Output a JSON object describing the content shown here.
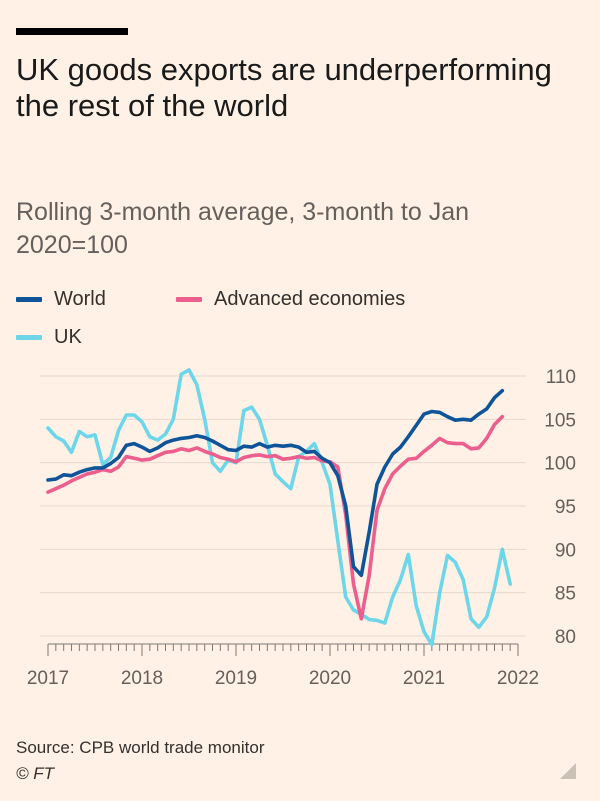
{
  "title": "UK goods exports are underperforming the rest of the world",
  "subtitle_line1": "Rolling 3-month average, 3-month to Jan",
  "subtitle_line2": "2020=100",
  "source": "Source: CPB world trade monitor",
  "credit": "© FT",
  "colors": {
    "background": "#fff1e5",
    "world": "#0f5499",
    "advanced": "#eb5e8d",
    "uk": "#6ed6e9",
    "grid": "#e6d9ce",
    "axis": "#807973",
    "tick_text": "#66605c"
  },
  "chart_data": {
    "type": "line",
    "title": "UK goods exports are underperforming the rest of the world",
    "subtitle": "Rolling 3-month average, 3-month to Jan 2020=100",
    "xlabel": "",
    "ylabel": "",
    "x_start": "2017-01",
    "x_step": "month",
    "xlim": [
      2017.0,
      2022.0
    ],
    "ylim": [
      80,
      110
    ],
    "yticks": [
      80,
      85,
      90,
      95,
      100,
      105,
      110
    ],
    "xticks": [
      {
        "label": "2017",
        "value": 2017.0
      },
      {
        "label": "2018",
        "value": 2018.0
      },
      {
        "label": "2019",
        "value": 2019.0
      },
      {
        "label": "2020",
        "value": 2020.0
      },
      {
        "label": "2021",
        "value": 2021.0
      },
      {
        "label": "2022",
        "value": 2022.0
      }
    ],
    "grid": true,
    "legend_position": "top-left",
    "series": [
      {
        "name": "World",
        "key": "world",
        "values": [
          98.0,
          98.1,
          98.6,
          98.5,
          98.9,
          99.2,
          99.4,
          99.4,
          99.9,
          100.6,
          102.0,
          102.2,
          101.8,
          101.3,
          101.7,
          102.3,
          102.6,
          102.8,
          102.9,
          103.1,
          102.9,
          102.5,
          102.0,
          101.5,
          101.4,
          101.9,
          101.8,
          102.2,
          101.8,
          102.0,
          101.9,
          102.0,
          101.8,
          101.2,
          101.3,
          100.5,
          100.0,
          98.5,
          95.0,
          88.0,
          87.0,
          92.0,
          97.5,
          99.5,
          101.0,
          101.8,
          103.0,
          104.3,
          105.6,
          105.9,
          105.8,
          105.3,
          104.9,
          105.0,
          104.9,
          105.6,
          106.2,
          107.5,
          108.3
        ]
      },
      {
        "name": "Advanced economies",
        "key": "advanced",
        "values": [
          96.6,
          97.0,
          97.4,
          97.9,
          98.3,
          98.7,
          98.9,
          99.2,
          99.0,
          99.5,
          100.7,
          100.5,
          100.3,
          100.4,
          100.8,
          101.2,
          101.3,
          101.6,
          101.4,
          101.7,
          101.3,
          101.0,
          100.6,
          100.4,
          100.1,
          100.6,
          100.8,
          100.9,
          100.7,
          100.8,
          100.4,
          100.5,
          100.7,
          100.5,
          100.6,
          100.2,
          100.1,
          99.5,
          94.0,
          86.0,
          82.0,
          87.0,
          94.5,
          97.0,
          98.7,
          99.6,
          100.4,
          100.5,
          101.3,
          102.0,
          102.8,
          102.3,
          102.2,
          102.2,
          101.6,
          101.7,
          102.8,
          104.4,
          105.3
        ]
      },
      {
        "name": "UK",
        "key": "uk",
        "values": [
          104.0,
          103.0,
          102.5,
          101.2,
          103.6,
          103.0,
          103.2,
          99.8,
          100.6,
          103.7,
          105.5,
          105.5,
          104.7,
          103.0,
          102.6,
          103.3,
          105.0,
          110.2,
          110.7,
          109.0,
          105.0,
          100.0,
          99.0,
          100.3,
          100.0,
          106.0,
          106.4,
          105.0,
          102.0,
          98.7,
          97.8,
          97.0,
          100.7,
          101.3,
          102.2,
          100.0,
          97.5,
          91.0,
          84.5,
          83.0,
          82.5,
          81.9,
          81.8,
          81.5,
          84.5,
          86.5,
          89.4,
          83.5,
          80.5,
          79.0,
          85.0,
          89.3,
          88.5,
          86.5,
          82.0,
          81.0,
          82.2,
          85.5,
          90.0,
          86.0
        ]
      }
    ]
  }
}
